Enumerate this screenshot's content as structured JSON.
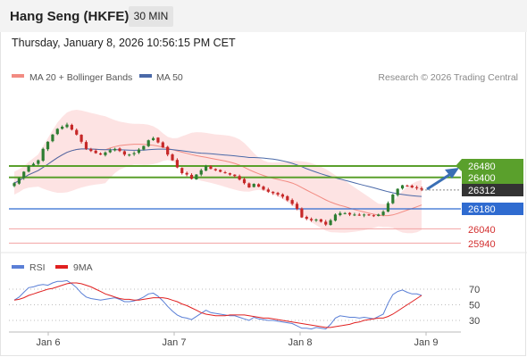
{
  "header": {
    "title": "Hang Seng (HKFE)",
    "interval": "30 MIN",
    "datetime": "Thursday, January 8, 2026 10:56:15 PM CET"
  },
  "legend": {
    "ma20": "MA 20 + Bollinger Bands",
    "ma50": "MA 50",
    "credit": "Research © 2026 Trading Central",
    "rsi": "RSI",
    "rsi_ma": "9MA"
  },
  "colors": {
    "ma20": "#f28b82",
    "ma50": "#4a69a8",
    "band_fill": "#fde3e3",
    "support": "#2f6bd0",
    "resistance": "#5aa02c",
    "target_low": "#f2a3a3",
    "target_text": "#d32f2f",
    "candle_up": "#2e7d32",
    "candle_down": "#c62828",
    "arrow": "#3a6fb5",
    "rsi": "#5a7fd6",
    "rsi_ma": "#e02020"
  },
  "chart_data": {
    "type": "candlestick",
    "x_tick_labels": [
      "Jan 6",
      "Jan 7",
      "Jan 8",
      "Jan 9"
    ],
    "price_min": 25900,
    "price_max": 26800,
    "levels": [
      {
        "value": 26480,
        "label": "26480",
        "kind": "resistance"
      },
      {
        "value": 26400,
        "label": "26400",
        "kind": "resistance"
      },
      {
        "value": 26312,
        "label": "26312",
        "kind": "last"
      },
      {
        "value": 26180,
        "label": "26180",
        "kind": "support"
      },
      {
        "value": 26040,
        "label": "26040",
        "kind": "target"
      },
      {
        "value": 25940,
        "label": "25940",
        "kind": "target"
      }
    ],
    "close": [
      26360,
      26395,
      26440,
      26480,
      26495,
      26520,
      26600,
      26650,
      26700,
      26740,
      26755,
      26770,
      26735,
      26700,
      26650,
      26600,
      26585,
      26570,
      26560,
      26575,
      26590,
      26600,
      26585,
      26560,
      26560,
      26570,
      26595,
      26620,
      26660,
      26675,
      26645,
      26610,
      26560,
      26520,
      26470,
      26430,
      26420,
      26390,
      26420,
      26450,
      26480,
      26460,
      26450,
      26440,
      26430,
      26420,
      26410,
      26385,
      26360,
      26330,
      26355,
      26335,
      26315,
      26300,
      26290,
      26280,
      26265,
      26240,
      26215,
      26180,
      26120,
      26110,
      26100,
      26105,
      26090,
      26070,
      26100,
      26140,
      26150,
      26150,
      26140,
      26140,
      26135,
      26140,
      26135,
      26130,
      26140,
      26160,
      26220,
      26280,
      26320,
      26345,
      26340,
      26330,
      26325,
      26315
    ],
    "rsi": {
      "min": 0,
      "max": 100,
      "ticks": [
        70,
        50,
        30
      ],
      "values": [
        56,
        60,
        66,
        72,
        73,
        75,
        76,
        75,
        78,
        80,
        80,
        81,
        77,
        72,
        65,
        60,
        58,
        57,
        56,
        57,
        58,
        59,
        57,
        54,
        54,
        55,
        57,
        60,
        64,
        65,
        61,
        55,
        48,
        42,
        37,
        34,
        33,
        31,
        35,
        39,
        43,
        40,
        39,
        38,
        37,
        36,
        36,
        34,
        32,
        30,
        34,
        32,
        31,
        30,
        30,
        29,
        28,
        27,
        26,
        23,
        20,
        20,
        19,
        21,
        20,
        19,
        25,
        33,
        36,
        35,
        34,
        34,
        33,
        34,
        33,
        32,
        35,
        38,
        52,
        63,
        67,
        69,
        66,
        64,
        64,
        62
      ],
      "ma9": [
        56,
        57,
        59,
        62,
        64,
        66,
        68,
        70,
        71,
        73,
        75,
        77,
        78,
        78,
        77,
        75,
        73,
        70,
        67,
        64,
        62,
        60,
        58,
        57,
        57,
        56,
        56,
        57,
        58,
        59,
        59,
        59,
        58,
        56,
        54,
        51,
        49,
        46,
        43,
        40,
        38,
        37,
        36,
        36,
        36,
        37,
        37,
        37,
        37,
        36,
        35,
        34,
        33,
        33,
        32,
        31,
        30,
        29,
        28,
        27,
        26,
        25,
        24,
        23,
        22,
        21,
        21,
        22,
        23,
        24,
        25,
        27,
        28,
        30,
        31,
        32,
        33,
        33,
        35,
        38,
        42,
        46,
        50,
        54,
        58,
        62
      ]
    }
  }
}
